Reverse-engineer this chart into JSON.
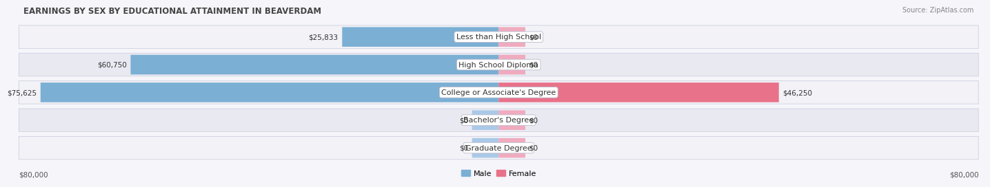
{
  "title": "EARNINGS BY SEX BY EDUCATIONAL ATTAINMENT IN BEAVERDAM",
  "source": "Source: ZipAtlas.com",
  "categories": [
    "Less than High School",
    "High School Diploma",
    "College or Associate's Degree",
    "Bachelor's Degree",
    "Graduate Degree"
  ],
  "male_values": [
    25833,
    60750,
    75625,
    0,
    0
  ],
  "female_values": [
    0,
    0,
    46250,
    0,
    0
  ],
  "male_labels": [
    "$25,833",
    "$60,750",
    "$75,625",
    "$0",
    "$0"
  ],
  "female_labels": [
    "$0",
    "$0",
    "$46,250",
    "$0",
    "$0"
  ],
  "max_val": 80000,
  "male_color": "#7bafd4",
  "female_color": "#e8728a",
  "male_color_light": "#aac9e8",
  "female_color_light": "#f0abbe",
  "row_bg_color": "#f0f0f5",
  "row_stripe_color": "#e8e8f0",
  "label_bg_color": "#ffffff",
  "axis_label_left": "$80,000",
  "axis_label_right": "$80,000",
  "legend_male": "Male",
  "legend_female": "Female",
  "title_fontsize": 8.5,
  "source_fontsize": 7,
  "bar_label_fontsize": 7.5,
  "category_fontsize": 8,
  "axis_fontsize": 7.5,
  "legend_fontsize": 8,
  "fig_bg": "#f5f5fa"
}
